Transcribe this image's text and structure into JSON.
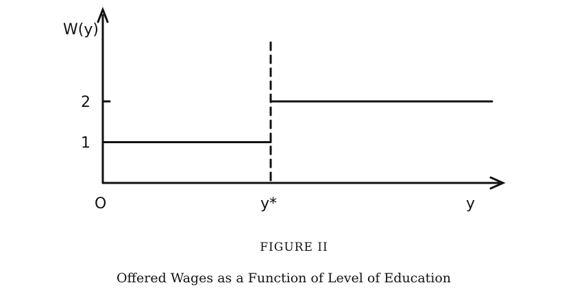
{
  "figure": {
    "label": "FIGURE II",
    "caption": "Offered Wages as a Function of Level of Education"
  },
  "chart_data": {
    "type": "line",
    "ylabel": "W(y)",
    "xlabel": "y",
    "origin_label": "O",
    "threshold_label": "y*",
    "ylim": [
      0,
      2.5
    ],
    "y_ticks": [
      {
        "value": 1,
        "label": "1"
      },
      {
        "value": 2,
        "label": "2"
      }
    ],
    "series": [
      {
        "segments": [
          {
            "x_from": "0",
            "x_to": "y*",
            "y": 1
          },
          {
            "x_from": "y*",
            "x_to": "end",
            "y": 2
          }
        ]
      }
    ],
    "threshold_marker": {
      "x": "y*",
      "style": "dashed"
    }
  }
}
